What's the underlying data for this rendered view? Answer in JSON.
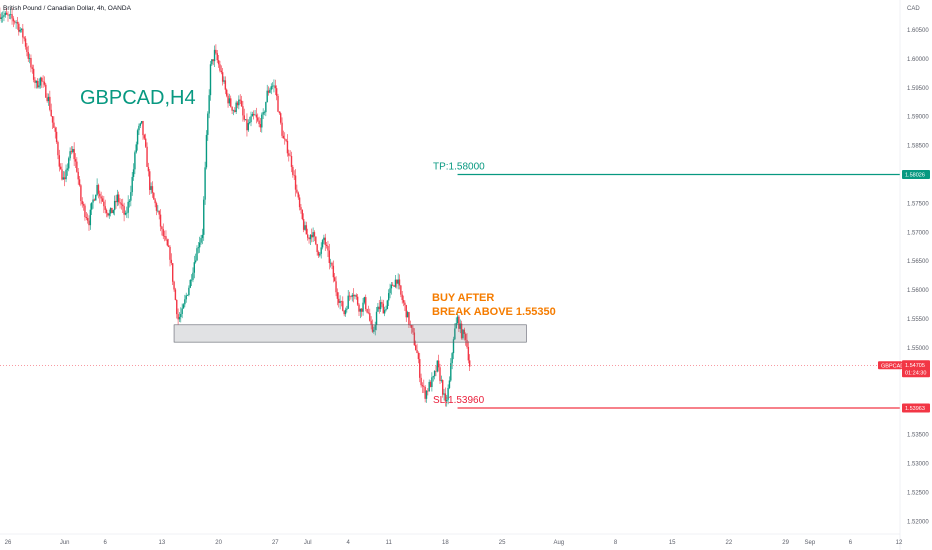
{
  "header": {
    "symbol_description": "British Pound / Canadian Dollar, 4h, OANDA",
    "currency": "CAD"
  },
  "chart_data": {
    "type": "candlestick",
    "title": "GBPCAD,H4",
    "symbol_tag": "GBPCAD",
    "ylim": [
      1.5185,
      1.6095
    ],
    "y_ticks": [
      {
        "value": 1.605,
        "label": "1.60500"
      },
      {
        "value": 1.6,
        "label": "1.60000"
      },
      {
        "value": 1.595,
        "label": "1.59500"
      },
      {
        "value": 1.59,
        "label": "1.59000"
      },
      {
        "value": 1.585,
        "label": "1.58500"
      },
      {
        "value": 1.575,
        "label": "1.57500"
      },
      {
        "value": 1.57,
        "label": "1.57000"
      },
      {
        "value": 1.565,
        "label": "1.56500"
      },
      {
        "value": 1.56,
        "label": "1.56000"
      },
      {
        "value": 1.555,
        "label": "1.55500"
      },
      {
        "value": 1.55,
        "label": "1.55000"
      },
      {
        "value": 1.535,
        "label": "1.53500"
      },
      {
        "value": 1.53,
        "label": "1.53000"
      },
      {
        "value": 1.525,
        "label": "1.52500"
      },
      {
        "value": 1.52,
        "label": "1.52000"
      }
    ],
    "x_ticks": [
      {
        "day": -1,
        "label": "26"
      },
      {
        "day": 6,
        "label": "Jun"
      },
      {
        "day": 11,
        "label": "6"
      },
      {
        "day": 18,
        "label": "13"
      },
      {
        "day": 25,
        "label": "20"
      },
      {
        "day": 32,
        "label": "27"
      },
      {
        "day": 36,
        "label": "Jul"
      },
      {
        "day": 41,
        "label": "4"
      },
      {
        "day": 46,
        "label": "11"
      },
      {
        "day": 53,
        "label": "18"
      },
      {
        "day": 60,
        "label": "25"
      },
      {
        "day": 67,
        "label": "Aug"
      },
      {
        "day": 74,
        "label": "8"
      },
      {
        "day": 81,
        "label": "15"
      },
      {
        "day": 88,
        "label": "22"
      },
      {
        "day": 95,
        "label": "29"
      },
      {
        "day": 98,
        "label": "Sep"
      },
      {
        "day": 103,
        "label": "6"
      },
      {
        "day": 109,
        "label": "12"
      }
    ],
    "close_path": [
      [
        -2,
        1.6078
      ],
      [
        -1,
        1.6072
      ],
      [
        0,
        1.6065
      ],
      [
        1,
        1.6035
      ],
      [
        1.5,
        1.6005
      ],
      [
        2,
        1.5975
      ],
      [
        2.5,
        1.5955
      ],
      [
        3,
        1.5965
      ],
      [
        3.5,
        1.5948
      ],
      [
        4,
        1.593
      ],
      [
        4.5,
        1.589
      ],
      [
        5,
        1.5855
      ],
      [
        5.5,
        1.5805
      ],
      [
        6,
        1.5785
      ],
      [
        6.5,
        1.583
      ],
      [
        7,
        1.584
      ],
      [
        7.5,
        1.581
      ],
      [
        8,
        1.5755
      ],
      [
        8.5,
        1.5735
      ],
      [
        9,
        1.572
      ],
      [
        9.5,
        1.5755
      ],
      [
        10,
        1.578
      ],
      [
        10.5,
        1.576
      ],
      [
        11,
        1.5745
      ],
      [
        11.5,
        1.573
      ],
      [
        12,
        1.574
      ],
      [
        12.5,
        1.576
      ],
      [
        13,
        1.5745
      ],
      [
        13.5,
        1.5725
      ],
      [
        14,
        1.576
      ],
      [
        14.5,
        1.581
      ],
      [
        15,
        1.5875
      ],
      [
        15.5,
        1.5885
      ],
      [
        16,
        1.584
      ],
      [
        16.5,
        1.578
      ],
      [
        17,
        1.5755
      ],
      [
        17.5,
        1.5735
      ],
      [
        18,
        1.57
      ],
      [
        18.5,
        1.568
      ],
      [
        19,
        1.566
      ],
      [
        19.5,
        1.56
      ],
      [
        20,
        1.555
      ],
      [
        20.5,
        1.556
      ],
      [
        21,
        1.559
      ],
      [
        21.5,
        1.5615
      ],
      [
        22,
        1.565
      ],
      [
        22.5,
        1.568
      ],
      [
        23,
        1.57
      ],
      [
        23.5,
        1.586
      ],
      [
        24,
        1.5985
      ],
      [
        24.5,
        1.601
      ],
      [
        25,
        1.599
      ],
      [
        25.5,
        1.5965
      ],
      [
        26,
        1.5935
      ],
      [
        26.5,
        1.592
      ],
      [
        27,
        1.591
      ],
      [
        27.5,
        1.5935
      ],
      [
        28,
        1.59
      ],
      [
        28.5,
        1.588
      ],
      [
        29,
        1.5895
      ],
      [
        29.5,
        1.59
      ],
      [
        30,
        1.5885
      ],
      [
        30.5,
        1.59
      ],
      [
        31,
        1.594
      ],
      [
        31.5,
        1.5955
      ],
      [
        32,
        1.595
      ],
      [
        32.5,
        1.59
      ],
      [
        33,
        1.586
      ],
      [
        33.5,
        1.5845
      ],
      [
        34,
        1.582
      ],
      [
        34.5,
        1.578
      ],
      [
        35,
        1.574
      ],
      [
        35.5,
        1.571
      ],
      [
        36,
        1.569
      ],
      [
        36.5,
        1.57
      ],
      [
        37,
        1.568
      ],
      [
        37.5,
        1.566
      ],
      [
        38,
        1.569
      ],
      [
        38.5,
        1.566
      ],
      [
        39,
        1.5635
      ],
      [
        39.5,
        1.56
      ],
      [
        40,
        1.558
      ],
      [
        40.5,
        1.556
      ],
      [
        41,
        1.5585
      ],
      [
        41.5,
        1.56
      ],
      [
        42,
        1.5585
      ],
      [
        42.5,
        1.5565
      ],
      [
        43,
        1.558
      ],
      [
        43.5,
        1.556
      ],
      [
        44,
        1.552
      ],
      [
        44.5,
        1.556
      ],
      [
        45,
        1.5575
      ],
      [
        45.5,
        1.5565
      ],
      [
        46,
        1.559
      ],
      [
        46.5,
        1.561
      ],
      [
        47,
        1.562
      ],
      [
        47.5,
        1.559
      ],
      [
        48,
        1.557
      ],
      [
        48.5,
        1.5545
      ],
      [
        49,
        1.552
      ],
      [
        49.5,
        1.549
      ],
      [
        50,
        1.544
      ],
      [
        50.5,
        1.542
      ],
      [
        51,
        1.5435
      ],
      [
        51.5,
        1.5445
      ],
      [
        52,
        1.547
      ],
      [
        52.5,
        1.544
      ],
      [
        53,
        1.54
      ],
      [
        53.5,
        1.544
      ],
      [
        54,
        1.552
      ],
      [
        54.5,
        1.555
      ],
      [
        55,
        1.5525
      ],
      [
        55.5,
        1.552
      ],
      [
        56,
        1.547
      ]
    ],
    "zone": {
      "day_start": 19.5,
      "day_end": 63,
      "y_low": 1.551,
      "y_high": 1.554
    },
    "tp": {
      "value": 1.58,
      "label": "TP:1.58000",
      "tag": "1.58026",
      "day_start": 54.5
    },
    "sl": {
      "value": 1.5396,
      "label": "SL:1.53960",
      "tag": "1.53963",
      "day_start": 54.5
    },
    "current": {
      "value": 1.547,
      "tag": "1.54705",
      "countdown": "01:24:30"
    },
    "annotation": {
      "line1": "BUY AFTER",
      "line2": "BREAK ABOVE 1.55350"
    },
    "colors": {
      "up": "#089981",
      "down": "#f23645",
      "tp": "#089981",
      "sl": "#f23645",
      "annotation": "#f57c00"
    }
  }
}
